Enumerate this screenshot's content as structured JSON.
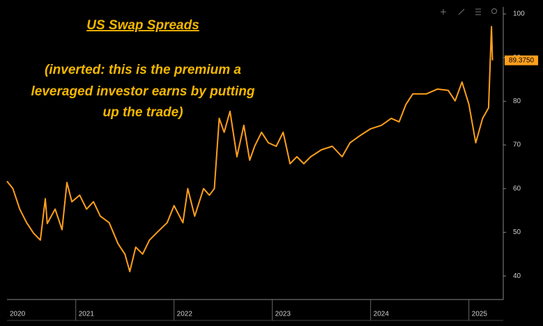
{
  "chart_data": {
    "type": "line",
    "title": "US Swap Spreads",
    "annotation": [
      "(inverted: this is the premium a",
      "leveraged investor earns by putting",
      "up the trade)"
    ],
    "x": [
      2020.3,
      2020.36,
      2020.43,
      2020.5,
      2020.57,
      2020.64,
      2020.69,
      2020.71,
      2020.79,
      2020.86,
      2020.91,
      2020.96,
      2021.04,
      2021.11,
      2021.18,
      2021.25,
      2021.34,
      2021.43,
      2021.5,
      2021.55,
      2021.61,
      2021.68,
      2021.75,
      2021.82,
      2021.93,
      2022.0,
      2022.09,
      2022.14,
      2022.21,
      2022.3,
      2022.36,
      2022.41,
      2022.46,
      2022.51,
      2022.57,
      2022.64,
      2022.71,
      2022.77,
      2022.82,
      2022.89,
      2022.96,
      2023.04,
      2023.11,
      2023.18,
      2023.25,
      2023.32,
      2023.39,
      2023.5,
      2023.61,
      2023.71,
      2023.79,
      2023.89,
      2024.0,
      2024.11,
      2024.21,
      2024.29,
      2024.36,
      2024.43,
      2024.5,
      2024.57,
      2024.68,
      2024.79,
      2024.86,
      2024.93,
      2025.0,
      2025.07,
      2025.14,
      2025.2,
      2025.23,
      2025.24
    ],
    "series": [
      {
        "name": "US Swap Spreads",
        "color": "#ff9f1c",
        "values": [
          61.7,
          60,
          55.3,
          52.2,
          49.8,
          48.2,
          57.7,
          52,
          55.3,
          50.6,
          61.4,
          57,
          58.5,
          55.3,
          57,
          53.7,
          52.2,
          47.4,
          45,
          41,
          46.6,
          45,
          48.2,
          49.8,
          52.2,
          56.1,
          52.2,
          60,
          53.7,
          60,
          58.5,
          60,
          76.1,
          72.9,
          77.7,
          67.3,
          74.5,
          66.5,
          69.7,
          72.9,
          70.5,
          69.7,
          72.9,
          65.7,
          67.3,
          65.7,
          67.3,
          68.9,
          69.7,
          67.3,
          70.5,
          72.1,
          73.7,
          74.5,
          76.1,
          75.3,
          79.3,
          81.7,
          81.7,
          81.7,
          82.8,
          82.5,
          80.1,
          84.4,
          79.3,
          70.5,
          76.1,
          78.5,
          97.1,
          89.375
        ]
      }
    ],
    "last_value_label": "89.3750",
    "xlim": [
      2020.3,
      2025.35
    ],
    "xticks": [
      {
        "value": 2020,
        "label": "2020"
      },
      {
        "value": 2021,
        "label": "2021"
      },
      {
        "value": 2022,
        "label": "2022"
      },
      {
        "value": 2023,
        "label": "2023"
      },
      {
        "value": 2024,
        "label": "2024"
      },
      {
        "value": 2025,
        "label": "2025"
      }
    ],
    "ylim": [
      34.6,
      101.6
    ],
    "yticks": [
      40,
      50,
      60,
      70,
      80,
      90,
      100
    ],
    "grid": false
  }
}
